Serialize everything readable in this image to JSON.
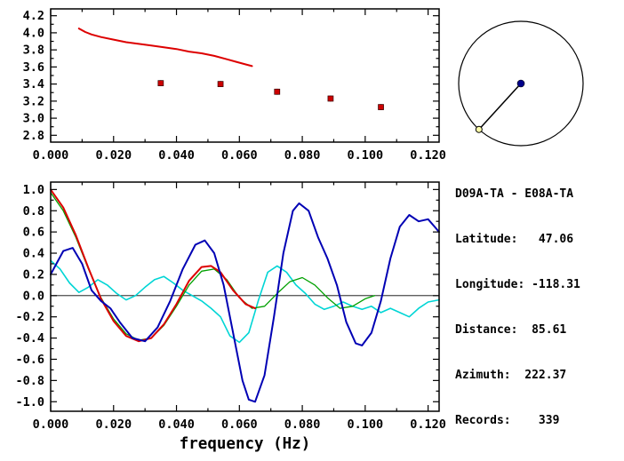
{
  "info_panel": {
    "title": "D09A-TA - E08A-TA",
    "lines": [
      "Latitude:   47.06",
      "Longitude: -118.31",
      "Distance:  85.61",
      "Azimuth:  222.37",
      "Records:    339"
    ]
  },
  "azimuth_diagram": {
    "azimuth_deg": 222.37,
    "center_marker_color": "#00008b",
    "end_marker_color": "#ffffaa",
    "line_color": "#000000"
  },
  "chart_data": [
    {
      "type": "line",
      "title": "",
      "xlabel": "",
      "ylabel": "",
      "xlim": [
        0,
        0.1235
      ],
      "ylim": [
        2.72,
        4.28
      ],
      "xticks": [
        0.0,
        0.02,
        0.04,
        0.06,
        0.08,
        0.1,
        0.12
      ],
      "xtick_labels": [
        "0.000",
        "0.020",
        "0.040",
        "0.060",
        "0.080",
        "0.100",
        "0.120"
      ],
      "yticks": [
        2.8,
        3.0,
        3.2,
        3.4,
        3.6,
        3.8,
        4.0,
        4.2
      ],
      "ytick_labels": [
        "2.8",
        "3.0",
        "3.2",
        "3.4",
        "3.6",
        "3.8",
        "4.0",
        "4.2"
      ],
      "xminor": 0.01,
      "yminor": 0.1,
      "grid": false,
      "series": [
        {
          "name": "smoothed-dispersion-curve",
          "color": "#dd0000",
          "width": 2,
          "x": [
            0.009,
            0.011,
            0.013,
            0.016,
            0.02,
            0.024,
            0.028,
            0.032,
            0.036,
            0.04,
            0.044,
            0.048,
            0.052,
            0.056,
            0.059,
            0.062,
            0.064
          ],
          "y": [
            4.05,
            4.01,
            3.98,
            3.95,
            3.92,
            3.89,
            3.87,
            3.85,
            3.83,
            3.81,
            3.78,
            3.76,
            3.73,
            3.69,
            3.66,
            3.63,
            3.61
          ]
        },
        {
          "name": "dispersion-measurements",
          "color": "#cc0000",
          "marker": "square",
          "size": 6,
          "yerr": 0.035,
          "x": [
            0.035,
            0.054,
            0.072,
            0.089,
            0.105
          ],
          "y": [
            3.41,
            3.4,
            3.31,
            3.23,
            3.13
          ]
        }
      ]
    },
    {
      "type": "line",
      "title": "",
      "xlabel": "frequency (Hz)",
      "ylabel": "",
      "xlim": [
        0,
        0.1235
      ],
      "ylim": [
        -1.09,
        1.07
      ],
      "xticks": [
        0.0,
        0.02,
        0.04,
        0.06,
        0.08,
        0.1,
        0.12
      ],
      "xtick_labels": [
        "0.000",
        "0.020",
        "0.040",
        "0.060",
        "0.080",
        "0.100",
        "0.120"
      ],
      "yticks": [
        -1.0,
        -0.8,
        -0.6,
        -0.4,
        -0.2,
        0.0,
        0.2,
        0.4,
        0.6,
        0.8,
        1.0
      ],
      "ytick_labels": [
        "-1.0",
        "-0.8",
        "-0.6",
        "-0.4",
        "-0.2",
        "0.0",
        "0.2",
        "0.4",
        "0.6",
        "0.8",
        "1.0"
      ],
      "xminor": 0.01,
      "yminor": 0.1,
      "zero_line": true,
      "grid": false,
      "series": [
        {
          "name": "cyan-curve",
          "color": "#00d5d5",
          "width": 1.6,
          "x": [
            0,
            0.003,
            0.006,
            0.009,
            0.012,
            0.015,
            0.018,
            0.021,
            0.024,
            0.027,
            0.03,
            0.033,
            0.036,
            0.039,
            0.042,
            0.045,
            0.048,
            0.051,
            0.054,
            0.057,
            0.06,
            0.063,
            0.066,
            0.069,
            0.072,
            0.075,
            0.078,
            0.081,
            0.084,
            0.087,
            0.09,
            0.093,
            0.096,
            0.099,
            0.102,
            0.105,
            0.108,
            0.111,
            0.114,
            0.117,
            0.12,
            0.1235
          ],
          "y": [
            0.33,
            0.25,
            0.12,
            0.03,
            0.08,
            0.15,
            0.1,
            0.02,
            -0.04,
            0.0,
            0.08,
            0.15,
            0.18,
            0.12,
            0.05,
            0.0,
            -0.05,
            -0.12,
            -0.2,
            -0.38,
            -0.44,
            -0.35,
            -0.05,
            0.22,
            0.28,
            0.22,
            0.1,
            0.02,
            -0.08,
            -0.13,
            -0.1,
            -0.06,
            -0.1,
            -0.13,
            -0.1,
            -0.16,
            -0.12,
            -0.16,
            -0.2,
            -0.12,
            -0.06,
            -0.04
          ]
        },
        {
          "name": "green-curve",
          "color": "#00a000",
          "width": 1.3,
          "x": [
            0,
            0.004,
            0.008,
            0.012,
            0.016,
            0.02,
            0.024,
            0.028,
            0.032,
            0.036,
            0.04,
            0.044,
            0.048,
            0.052,
            0.056,
            0.06,
            0.064,
            0.068,
            0.072,
            0.076,
            0.08,
            0.084,
            0.088,
            0.092,
            0.096,
            0.1,
            0.103
          ],
          "y": [
            0.97,
            0.8,
            0.55,
            0.25,
            -0.02,
            -0.22,
            -0.36,
            -0.42,
            -0.4,
            -0.28,
            -0.1,
            0.1,
            0.23,
            0.25,
            0.15,
            -0.02,
            -0.12,
            -0.1,
            0.02,
            0.13,
            0.17,
            0.1,
            -0.02,
            -0.12,
            -0.1,
            -0.03,
            0.0
          ]
        },
        {
          "name": "red-curve",
          "color": "#dd0000",
          "width": 2,
          "x": [
            0,
            0.004,
            0.008,
            0.012,
            0.016,
            0.02,
            0.024,
            0.028,
            0.032,
            0.036,
            0.04,
            0.044,
            0.048,
            0.051,
            0.054,
            0.058,
            0.062,
            0.065
          ],
          "y": [
            1.0,
            0.83,
            0.57,
            0.26,
            -0.03,
            -0.24,
            -0.38,
            -0.43,
            -0.4,
            -0.27,
            -0.08,
            0.14,
            0.27,
            0.28,
            0.22,
            0.05,
            -0.08,
            -0.12
          ]
        },
        {
          "name": "blue-curve",
          "color": "#0000b4",
          "width": 2,
          "x": [
            0,
            0.004,
            0.007,
            0.01,
            0.013,
            0.016,
            0.019,
            0.022,
            0.026,
            0.03,
            0.034,
            0.038,
            0.042,
            0.046,
            0.049,
            0.052,
            0.055,
            0.058,
            0.061,
            0.063,
            0.065,
            0.068,
            0.071,
            0.074,
            0.077,
            0.079,
            0.082,
            0.085,
            0.088,
            0.091,
            0.094,
            0.097,
            0.099,
            0.102,
            0.105,
            0.108,
            0.111,
            0.114,
            0.117,
            0.12,
            0.1235
          ],
          "y": [
            0.2,
            0.42,
            0.45,
            0.3,
            0.05,
            -0.05,
            -0.12,
            -0.25,
            -0.4,
            -0.43,
            -0.3,
            -0.05,
            0.25,
            0.48,
            0.52,
            0.4,
            0.1,
            -0.35,
            -0.8,
            -0.98,
            -1.0,
            -0.75,
            -0.2,
            0.4,
            0.8,
            0.87,
            0.8,
            0.55,
            0.35,
            0.1,
            -0.25,
            -0.45,
            -0.47,
            -0.35,
            -0.05,
            0.35,
            0.65,
            0.76,
            0.7,
            0.72,
            0.6
          ]
        }
      ]
    }
  ]
}
